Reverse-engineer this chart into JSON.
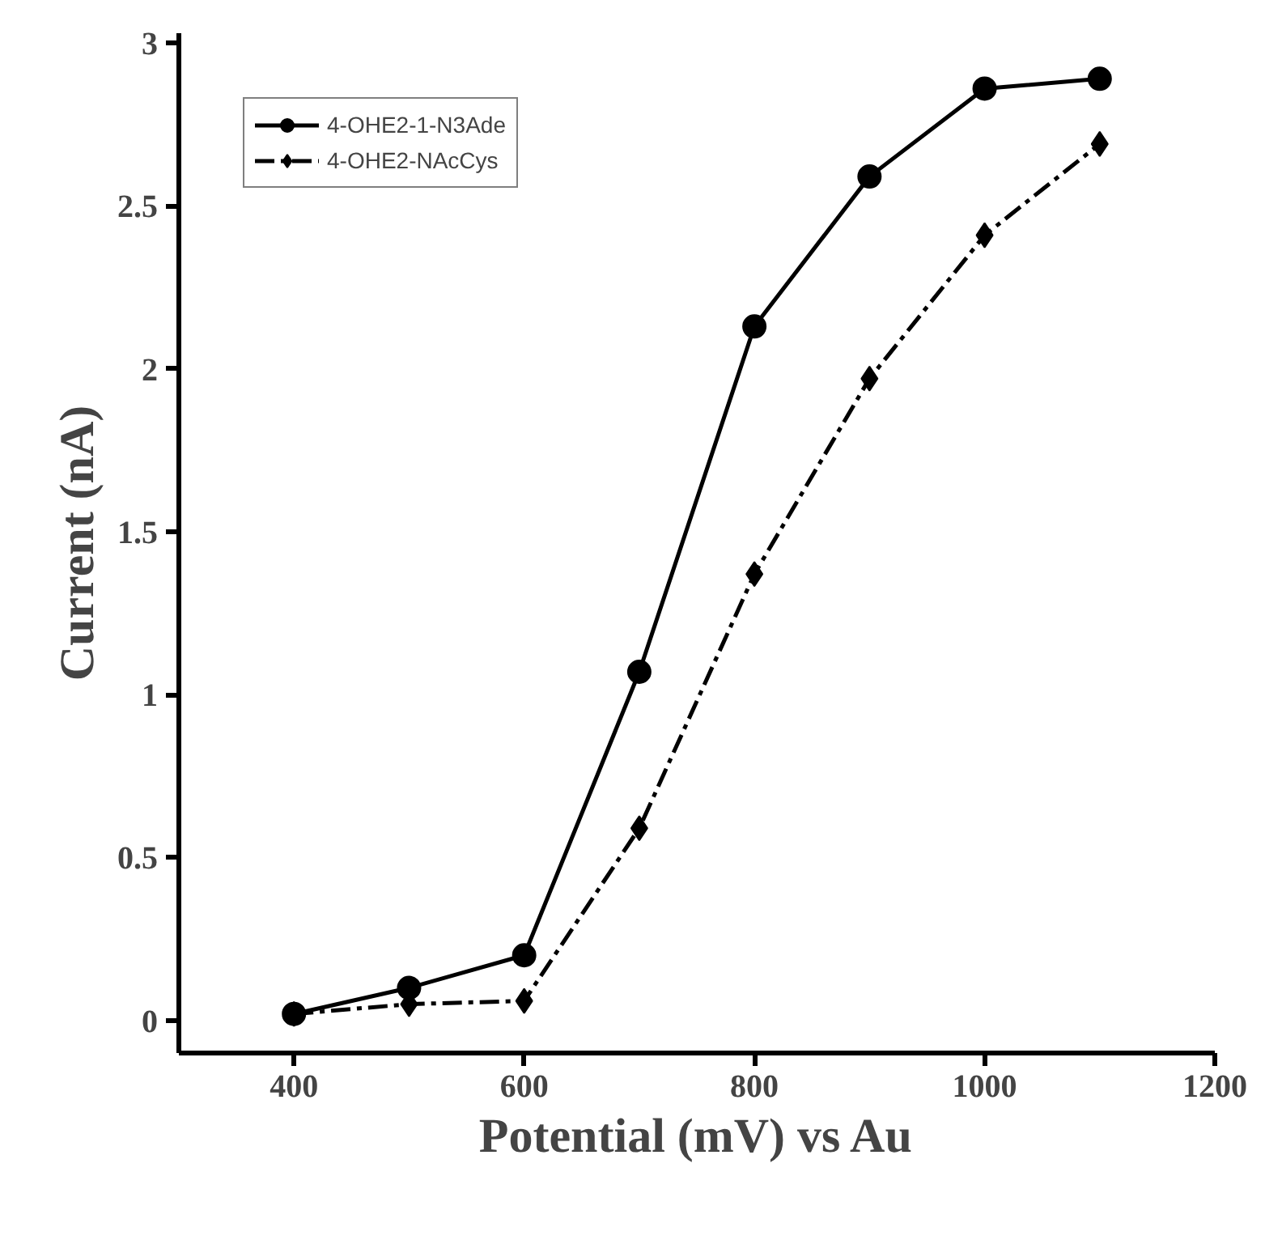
{
  "chart_data": {
    "type": "line",
    "xlabel": "Potential (mV) vs Au",
    "ylabel": "Current (nA)",
    "x": [
      400,
      500,
      600,
      700,
      800,
      900,
      1000,
      1100
    ],
    "series": [
      {
        "name": "4-OHE2-1-N3Ade",
        "color": "#000000",
        "marker": "circle",
        "line_style": "solid",
        "values": [
          0.02,
          0.1,
          0.2,
          1.07,
          2.13,
          2.59,
          2.86,
          2.89
        ]
      },
      {
        "name": "4-OHE2-NAcCys",
        "color": "#000000",
        "marker": "diamond",
        "line_style": "dashed",
        "values": [
          0.02,
          0.05,
          0.06,
          0.59,
          1.37,
          1.97,
          2.41,
          2.69
        ]
      }
    ],
    "xlim": [
      300,
      1200
    ],
    "xticks": [
      400,
      600,
      800,
      1000,
      1200
    ],
    "ylim": [
      -0.1,
      3.03
    ],
    "yticks": [
      0,
      0.5,
      1,
      1.5,
      2,
      2.5,
      3
    ],
    "grid": false,
    "legend": "top left"
  }
}
